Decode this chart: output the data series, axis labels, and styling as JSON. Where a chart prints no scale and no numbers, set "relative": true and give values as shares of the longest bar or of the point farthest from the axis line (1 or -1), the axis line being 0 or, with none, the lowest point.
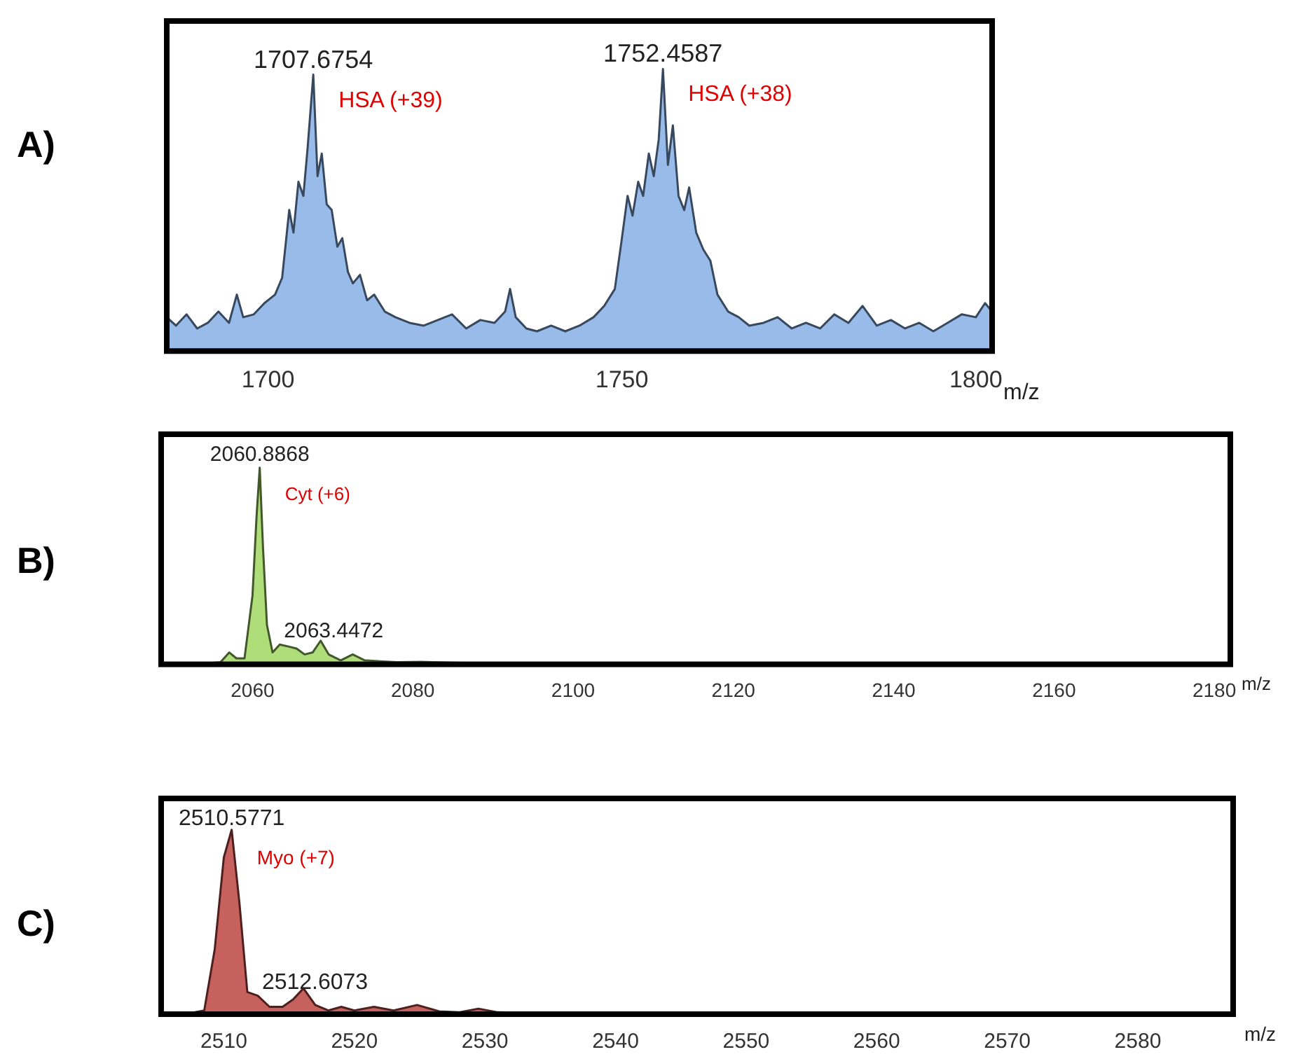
{
  "chart_data": [
    {
      "type": "area",
      "title": "A)",
      "xlabel": "m/z",
      "relative": true,
      "xlim": [
        1685.7,
        1802.3
      ],
      "xticks": [
        1700,
        1750,
        1800
      ],
      "series": [
        {
          "color": "#8db4e8",
          "x": [
            1685.7,
            1687,
            1688.5,
            1690,
            1691.5,
            1693,
            1694.5,
            1695.6,
            1696.5,
            1698,
            1699.5,
            1701,
            1702,
            1703,
            1703.6,
            1704.3,
            1705,
            1705.6,
            1706.4,
            1707,
            1707.6,
            1708.3,
            1709,
            1709.8,
            1710.5,
            1711.3,
            1712,
            1713,
            1714,
            1715,
            1716.5,
            1718,
            1720,
            1722,
            1724,
            1726,
            1728,
            1730,
            1732,
            1733.5,
            1734.2,
            1735,
            1736.5,
            1738,
            1740,
            1742,
            1744,
            1746,
            1747.5,
            1749,
            1750,
            1750.8,
            1751.5,
            1752.3,
            1753,
            1753.8,
            1754.5,
            1755.2,
            1755.8,
            1756.5,
            1757.2,
            1758,
            1758.8,
            1759.5,
            1760.5,
            1761.5,
            1762.5,
            1763.5,
            1765,
            1766.5,
            1768,
            1770,
            1772,
            1774,
            1776,
            1778,
            1780,
            1782,
            1784,
            1786,
            1788,
            1790,
            1792,
            1794,
            1796,
            1798,
            1800,
            1801.3,
            1802.3
          ],
          "values": [
            0.12,
            0.09,
            0.13,
            0.08,
            0.1,
            0.14,
            0.1,
            0.2,
            0.12,
            0.13,
            0.17,
            0.2,
            0.26,
            0.5,
            0.42,
            0.6,
            0.55,
            0.72,
            0.98,
            0.62,
            0.7,
            0.52,
            0.5,
            0.37,
            0.4,
            0.28,
            0.24,
            0.27,
            0.18,
            0.2,
            0.14,
            0.12,
            0.1,
            0.09,
            0.11,
            0.13,
            0.08,
            0.11,
            0.1,
            0.14,
            0.22,
            0.12,
            0.08,
            0.07,
            0.09,
            0.07,
            0.09,
            0.12,
            0.16,
            0.22,
            0.4,
            0.55,
            0.48,
            0.6,
            0.55,
            0.7,
            0.62,
            0.75,
            1,
            0.66,
            0.8,
            0.55,
            0.5,
            0.58,
            0.42,
            0.36,
            0.32,
            0.2,
            0.14,
            0.12,
            0.09,
            0.1,
            0.12,
            0.08,
            0.1,
            0.08,
            0.13,
            0.1,
            0.16,
            0.09,
            0.11,
            0.08,
            0.1,
            0.07,
            0.1,
            0.13,
            0.12,
            0.17,
            0.14
          ]
        }
      ],
      "annotations": [
        {
          "text": "1707.6754",
          "x": 1706.4,
          "y": 0.98
        },
        "HSA (+39)",
        {
          "text": "1752.4587",
          "x": 1755.8,
          "y": 1
        },
        "HSA (+38)"
      ]
    },
    {
      "type": "area",
      "title": "B)",
      "xlabel": "m/z",
      "relative": true,
      "xlim": [
        2048.6,
        2182
      ],
      "xticks": [
        2060,
        2080,
        2100,
        2120,
        2140,
        2160,
        2180
      ],
      "series": [
        {
          "color": "#a6d96a",
          "x": [
            2048.6,
            2054,
            2056,
            2057.1,
            2058,
            2059,
            2060,
            2060.5,
            2060.9,
            2061.3,
            2061.8,
            2062.5,
            2063.4,
            2064.5,
            2065.5,
            2066.5,
            2067.5,
            2068.5,
            2069.5,
            2071,
            2072.5,
            2074,
            2076,
            2078,
            2081,
            2085,
            2090,
            2100,
            2120,
            2150,
            2182
          ],
          "values": [
            0,
            0.003,
            0.01,
            0.06,
            0.03,
            0.03,
            0.35,
            0.75,
            1,
            0.6,
            0.2,
            0.06,
            0.1,
            0.09,
            0.08,
            0.05,
            0.06,
            0.12,
            0.05,
            0.02,
            0.05,
            0.02,
            0.015,
            0.01,
            0.012,
            0.008,
            0.005,
            0.004,
            0.003,
            0.002,
            0.002
          ]
        }
      ],
      "annotations": [
        {
          "text": "2060.8868",
          "x": 2060.9,
          "y": 1
        },
        "Cyt (+6)",
        {
          "text": "2063.4472",
          "x": 2063.4,
          "y": 0.1
        }
      ]
    },
    {
      "type": "area",
      "title": "C)",
      "xlabel": "m/z",
      "relative": true,
      "xlim": [
        2505.2,
        2587.3
      ],
      "xticks": [
        2510,
        2520,
        2530,
        2540,
        2550,
        2560,
        2570,
        2580
      ],
      "series": [
        {
          "color": "#c0504d",
          "x": [
            2505.2,
            2507,
            2508.5,
            2509.3,
            2510,
            2510.6,
            2511.2,
            2511.8,
            2512.6,
            2513.5,
            2514.5,
            2515.3,
            2516.1,
            2517,
            2518,
            2519,
            2520,
            2521.5,
            2523,
            2524.8,
            2526.5,
            2528,
            2529.5,
            2531,
            2535,
            2545,
            2560,
            2575,
            2587.3
          ],
          "values": [
            0,
            0,
            0.02,
            0.35,
            0.85,
            1,
            0.6,
            0.12,
            0.1,
            0.04,
            0.04,
            0.08,
            0.14,
            0.05,
            0.02,
            0.04,
            0.02,
            0.04,
            0.02,
            0.05,
            0.015,
            0.01,
            0.03,
            0.01,
            0.005,
            0.003,
            0.002,
            0.002,
            0.002
          ]
        }
      ],
      "annotations": [
        {
          "text": "2510.5771",
          "x": 2510.6,
          "y": 1
        },
        "Myo (+7)",
        {
          "text": "2512.6073",
          "x": 2512.6,
          "y": 0.1
        }
      ]
    }
  ]
}
